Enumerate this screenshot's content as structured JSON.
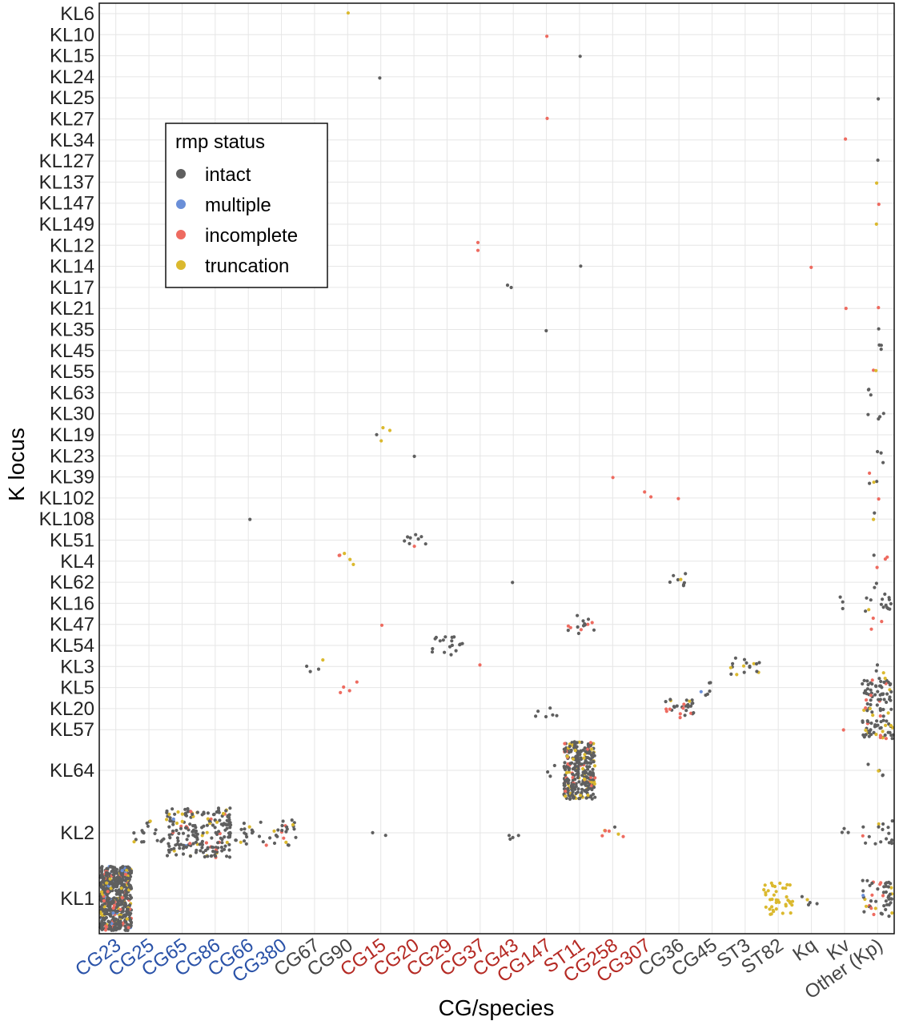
{
  "chart_data": {
    "type": "scatter",
    "subtype": "jittered categorical strip plot",
    "xlabel": "CG/species",
    "ylabel": "K locus",
    "x_categories": [
      "CG23",
      "CG25",
      "CG65",
      "CG86",
      "CG66",
      "CG380",
      "CG67",
      "CG90",
      "CG15",
      "CG20",
      "CG29",
      "CG37",
      "CG43",
      "CG147",
      "ST11",
      "CG258",
      "CG307",
      "CG36",
      "CG45",
      "ST3",
      "ST82",
      "Kq",
      "Kv",
      "Other (Kp)"
    ],
    "x_category_colors": [
      "#2a52a8",
      "#2a52a8",
      "#2a52a8",
      "#2a52a8",
      "#2a52a8",
      "#2a52a8",
      "#444444",
      "#444444",
      "#b52a24",
      "#b52a24",
      "#b52a24",
      "#b52a24",
      "#b52a24",
      "#b52a24",
      "#b52a24",
      "#b52a24",
      "#b52a24",
      "#444444",
      "#444444",
      "#444444",
      "#444444",
      "#444444",
      "#444444",
      "#444444"
    ],
    "y_categories": [
      "KL6",
      "KL10",
      "KL15",
      "KL24",
      "KL25",
      "KL27",
      "KL34",
      "KL127",
      "KL137",
      "KL147",
      "KL149",
      "KL12",
      "KL14",
      "KL17",
      "KL21",
      "KL35",
      "KL45",
      "KL55",
      "KL63",
      "KL30",
      "KL19",
      "KL23",
      "KL39",
      "KL102",
      "KL108",
      "KL51",
      "KL4",
      "KL62",
      "KL16",
      "KL47",
      "KL54",
      "KL3",
      "KL5",
      "KL20",
      "KL57",
      "KL64",
      "KL2",
      "KL1"
    ],
    "legend": {
      "title": "rmp status",
      "position": "top-left inside",
      "entries": [
        {
          "label": "intact",
          "color": "#5f5f5f"
        },
        {
          "label": "multiple",
          "color": "#6a8fd8"
        },
        {
          "label": "incomplete",
          "color": "#ee6b60"
        },
        {
          "label": "truncation",
          "color": "#dbb92e"
        }
      ]
    },
    "grid": true,
    "counts_by_status": [
      {
        "x": "CG90",
        "y": "KL6",
        "intact": 0,
        "multiple": 0,
        "incomplete": 0,
        "truncation": 1
      },
      {
        "x": "CG147",
        "y": "KL10",
        "intact": 0,
        "multiple": 0,
        "incomplete": 1,
        "truncation": 0
      },
      {
        "x": "ST11",
        "y": "KL15",
        "intact": 1,
        "multiple": 0,
        "incomplete": 0,
        "truncation": 0
      },
      {
        "x": "CG15",
        "y": "KL24",
        "intact": 1,
        "multiple": 0,
        "incomplete": 0,
        "truncation": 0
      },
      {
        "x": "Other (Kp)",
        "y": "KL25",
        "intact": 1,
        "multiple": 0,
        "incomplete": 0,
        "truncation": 0
      },
      {
        "x": "CG147",
        "y": "KL27",
        "intact": 0,
        "multiple": 0,
        "incomplete": 1,
        "truncation": 0
      },
      {
        "x": "Kv",
        "y": "KL34",
        "intact": 0,
        "multiple": 0,
        "incomplete": 1,
        "truncation": 0
      },
      {
        "x": "Other (Kp)",
        "y": "KL127",
        "intact": 1,
        "multiple": 0,
        "incomplete": 0,
        "truncation": 0
      },
      {
        "x": "Other (Kp)",
        "y": "KL137",
        "intact": 0,
        "multiple": 0,
        "incomplete": 0,
        "truncation": 1
      },
      {
        "x": "Other (Kp)",
        "y": "KL147",
        "intact": 0,
        "multiple": 0,
        "incomplete": 1,
        "truncation": 0
      },
      {
        "x": "Other (Kp)",
        "y": "KL149",
        "intact": 0,
        "multiple": 0,
        "incomplete": 0,
        "truncation": 1
      },
      {
        "x": "CG37",
        "y": "KL12",
        "intact": 0,
        "multiple": 0,
        "incomplete": 2,
        "truncation": 0
      },
      {
        "x": "ST11",
        "y": "KL14",
        "intact": 1,
        "multiple": 0,
        "incomplete": 0,
        "truncation": 0
      },
      {
        "x": "Kq",
        "y": "KL14",
        "intact": 0,
        "multiple": 0,
        "incomplete": 1,
        "truncation": 0
      },
      {
        "x": "CG43",
        "y": "KL17",
        "intact": 2,
        "multiple": 0,
        "incomplete": 0,
        "truncation": 0
      },
      {
        "x": "Kv",
        "y": "KL21",
        "intact": 0,
        "multiple": 0,
        "incomplete": 1,
        "truncation": 0
      },
      {
        "x": "Other (Kp)",
        "y": "KL21",
        "intact": 0,
        "multiple": 0,
        "incomplete": 1,
        "truncation": 0
      },
      {
        "x": "CG147",
        "y": "KL35",
        "intact": 1,
        "multiple": 0,
        "incomplete": 0,
        "truncation": 0
      },
      {
        "x": "Other (Kp)",
        "y": "KL35",
        "intact": 1,
        "multiple": 0,
        "incomplete": 0,
        "truncation": 0
      },
      {
        "x": "Other (Kp)",
        "y": "KL45",
        "intact": 3,
        "multiple": 0,
        "incomplete": 0,
        "truncation": 0
      },
      {
        "x": "Other (Kp)",
        "y": "KL55",
        "intact": 0,
        "multiple": 0,
        "incomplete": 1,
        "truncation": 1
      },
      {
        "x": "Other (Kp)",
        "y": "KL63",
        "intact": 3,
        "multiple": 0,
        "incomplete": 0,
        "truncation": 0
      },
      {
        "x": "Other (Kp)",
        "y": "KL30",
        "intact": 4,
        "multiple": 0,
        "incomplete": 0,
        "truncation": 0
      },
      {
        "x": "CG15",
        "y": "KL19",
        "intact": 1,
        "multiple": 0,
        "incomplete": 0,
        "truncation": 3
      },
      {
        "x": "CG20",
        "y": "KL23",
        "intact": 1,
        "multiple": 0,
        "incomplete": 0,
        "truncation": 0
      },
      {
        "x": "Other (Kp)",
        "y": "KL23",
        "intact": 3,
        "multiple": 0,
        "incomplete": 0,
        "truncation": 0
      },
      {
        "x": "CG258",
        "y": "KL39",
        "intact": 0,
        "multiple": 0,
        "incomplete": 1,
        "truncation": 0
      },
      {
        "x": "Other (Kp)",
        "y": "KL39",
        "intact": 2,
        "multiple": 0,
        "incomplete": 1,
        "truncation": 1
      },
      {
        "x": "CG307",
        "y": "KL102",
        "intact": 0,
        "multiple": 0,
        "incomplete": 2,
        "truncation": 0
      },
      {
        "x": "CG36",
        "y": "KL102",
        "intact": 0,
        "multiple": 0,
        "incomplete": 1,
        "truncation": 0
      },
      {
        "x": "Other (Kp)",
        "y": "KL102",
        "intact": 0,
        "multiple": 0,
        "incomplete": 1,
        "truncation": 0
      },
      {
        "x": "CG66",
        "y": "KL108",
        "intact": 1,
        "multiple": 0,
        "incomplete": 0,
        "truncation": 0
      },
      {
        "x": "Other (Kp)",
        "y": "KL108",
        "intact": 1,
        "multiple": 0,
        "incomplete": 0,
        "truncation": 1
      },
      {
        "x": "CG20",
        "y": "KL51",
        "intact": 8,
        "multiple": 0,
        "incomplete": 1,
        "truncation": 0
      },
      {
        "x": "CG90",
        "y": "KL4",
        "intact": 0,
        "multiple": 0,
        "incomplete": 2,
        "truncation": 3
      },
      {
        "x": "Other (Kp)",
        "y": "KL4",
        "intact": 1,
        "multiple": 0,
        "incomplete": 3,
        "truncation": 0
      },
      {
        "x": "CG43",
        "y": "KL62",
        "intact": 1,
        "multiple": 0,
        "incomplete": 0,
        "truncation": 0
      },
      {
        "x": "CG36",
        "y": "KL62",
        "intact": 7,
        "multiple": 0,
        "incomplete": 0,
        "truncation": 1
      },
      {
        "x": "Other (Kp)",
        "y": "KL62",
        "intact": 2,
        "multiple": 0,
        "incomplete": 0,
        "truncation": 0
      },
      {
        "x": "Kv",
        "y": "KL16",
        "intact": 3,
        "multiple": 0,
        "incomplete": 0,
        "truncation": 0
      },
      {
        "x": "Other (Kp)",
        "y": "KL16",
        "intact": 14,
        "multiple": 0,
        "incomplete": 0,
        "truncation": 1
      },
      {
        "x": "CG15",
        "y": "KL47",
        "intact": 0,
        "multiple": 0,
        "incomplete": 1,
        "truncation": 0
      },
      {
        "x": "ST11",
        "y": "KL47",
        "intact": 10,
        "multiple": 0,
        "incomplete": 5,
        "truncation": 0
      },
      {
        "x": "Other (Kp)",
        "y": "KL47",
        "intact": 0,
        "multiple": 0,
        "incomplete": 3,
        "truncation": 0
      },
      {
        "x": "CG29",
        "y": "KL54",
        "intact": 18,
        "multiple": 0,
        "incomplete": 0,
        "truncation": 0
      },
      {
        "x": "CG67",
        "y": "KL3",
        "intact": 3,
        "multiple": 0,
        "incomplete": 0,
        "truncation": 1
      },
      {
        "x": "CG37",
        "y": "KL3",
        "intact": 0,
        "multiple": 0,
        "incomplete": 1,
        "truncation": 0
      },
      {
        "x": "ST3",
        "y": "KL3",
        "intact": 12,
        "multiple": 0,
        "incomplete": 0,
        "truncation": 5
      },
      {
        "x": "Other (Kp)",
        "y": "KL3",
        "intact": 2,
        "multiple": 0,
        "incomplete": 0,
        "truncation": 1
      },
      {
        "x": "CG90",
        "y": "KL5",
        "intact": 0,
        "multiple": 0,
        "incomplete": 4,
        "truncation": 0
      },
      {
        "x": "CG45",
        "y": "KL5",
        "intact": 5,
        "multiple": 1,
        "incomplete": 0,
        "truncation": 0
      },
      {
        "x": "Other (Kp)",
        "y": "KL5",
        "intact": 35,
        "multiple": 0,
        "incomplete": 3,
        "truncation": 2
      },
      {
        "x": "CG147",
        "y": "KL20",
        "intact": 6,
        "multiple": 0,
        "incomplete": 0,
        "truncation": 0
      },
      {
        "x": "CG36",
        "y": "KL20",
        "intact": 20,
        "multiple": 0,
        "incomplete": 8,
        "truncation": 2
      },
      {
        "x": "Other (Kp)",
        "y": "KL20",
        "intact": 18,
        "multiple": 0,
        "incomplete": 4,
        "truncation": 4
      },
      {
        "x": "Kv",
        "y": "KL57",
        "intact": 0,
        "multiple": 0,
        "incomplete": 1,
        "truncation": 0
      },
      {
        "x": "Other (Kp)",
        "y": "KL57",
        "intact": 36,
        "multiple": 0,
        "incomplete": 4,
        "truncation": 8
      },
      {
        "x": "CG147",
        "y": "KL64",
        "intact": 3,
        "multiple": 0,
        "incomplete": 0,
        "truncation": 0
      },
      {
        "x": "ST11",
        "y": "KL64",
        "intact": 230,
        "multiple": 0,
        "incomplete": 30,
        "truncation": 40
      },
      {
        "x": "Other (Kp)",
        "y": "KL64",
        "intact": 4,
        "multiple": 0,
        "incomplete": 0,
        "truncation": 1
      },
      {
        "x": "CG25",
        "y": "KL2",
        "intact": 16,
        "multiple": 0,
        "incomplete": 0,
        "truncation": 2
      },
      {
        "x": "CG65",
        "y": "KL2",
        "intact": 80,
        "multiple": 2,
        "incomplete": 6,
        "truncation": 12
      },
      {
        "x": "CG86",
        "y": "KL2",
        "intact": 90,
        "multiple": 0,
        "incomplete": 8,
        "truncation": 10
      },
      {
        "x": "CG66",
        "y": "KL2",
        "intact": 16,
        "multiple": 0,
        "incomplete": 0,
        "truncation": 2
      },
      {
        "x": "CG380",
        "y": "KL2",
        "intact": 18,
        "multiple": 0,
        "incomplete": 4,
        "truncation": 3
      },
      {
        "x": "CG15",
        "y": "KL2",
        "intact": 2,
        "multiple": 0,
        "incomplete": 0,
        "truncation": 0
      },
      {
        "x": "CG43",
        "y": "KL2",
        "intact": 4,
        "multiple": 0,
        "incomplete": 0,
        "truncation": 0
      },
      {
        "x": "CG258",
        "y": "KL2",
        "intact": 1,
        "multiple": 0,
        "incomplete": 4,
        "truncation": 2
      },
      {
        "x": "Kv",
        "y": "KL2",
        "intact": 3,
        "multiple": 0,
        "incomplete": 0,
        "truncation": 0
      },
      {
        "x": "Other (Kp)",
        "y": "KL2",
        "intact": 16,
        "multiple": 0,
        "incomplete": 1,
        "truncation": 1
      },
      {
        "x": "CG23",
        "y": "KL1",
        "intact": 450,
        "multiple": 20,
        "incomplete": 40,
        "truncation": 40
      },
      {
        "x": "ST82",
        "y": "KL1",
        "intact": 0,
        "multiple": 0,
        "incomplete": 0,
        "truncation": 40
      },
      {
        "x": "Kq",
        "y": "KL1",
        "intact": 4,
        "multiple": 0,
        "incomplete": 0,
        "truncation": 1
      },
      {
        "x": "Other (Kp)",
        "y": "KL1",
        "intact": 36,
        "multiple": 1,
        "incomplete": 8,
        "truncation": 6
      }
    ]
  }
}
